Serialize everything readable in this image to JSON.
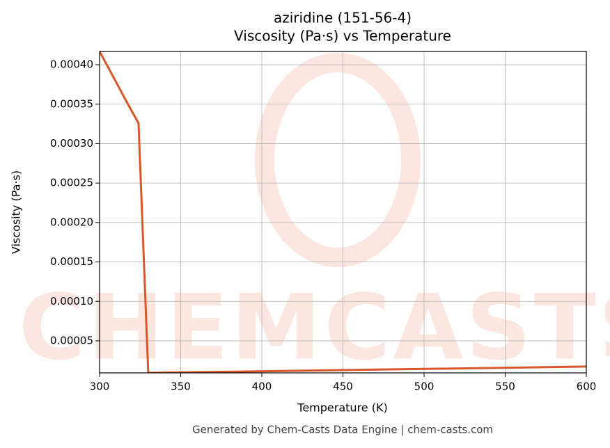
{
  "chart_data": {
    "type": "line",
    "title": "aziridine (151-56-4)",
    "subtitle": "Viscosity (Pa·s) vs Temperature",
    "x_label": "Temperature (K)",
    "y_label": "Viscosity (Pa·s)",
    "footer": "Generated by Chem-Casts Data Engine | chem-casts.com",
    "watermark": "CHEMCASTS",
    "x": [
      300,
      318,
      324,
      330,
      450,
      600
    ],
    "series": [
      {
        "name": "Viscosity",
        "color": "#d9572b",
        "values": [
          0.000417,
          0.000348,
          0.000326,
          9.4e-06,
          1.29e-05,
          1.74e-05
        ]
      }
    ],
    "xlim": [
      300,
      600
    ],
    "ylim": [
      9.4e-06,
      0.0004168
    ],
    "xticks": [
      300,
      350,
      400,
      450,
      500,
      550,
      600
    ],
    "yticks": [
      {
        "value": 5e-05,
        "label": "0.00005"
      },
      {
        "value": 0.0001,
        "label": "0.00010"
      },
      {
        "value": 0.00015,
        "label": "0.00015"
      },
      {
        "value": 0.0002,
        "label": "0.00020"
      },
      {
        "value": 0.00025,
        "label": "0.00025"
      },
      {
        "value": 0.0003,
        "label": "0.00030"
      },
      {
        "value": 0.00035,
        "label": "0.00035"
      },
      {
        "value": 0.0004,
        "label": "0.00040"
      }
    ],
    "grid": true
  }
}
